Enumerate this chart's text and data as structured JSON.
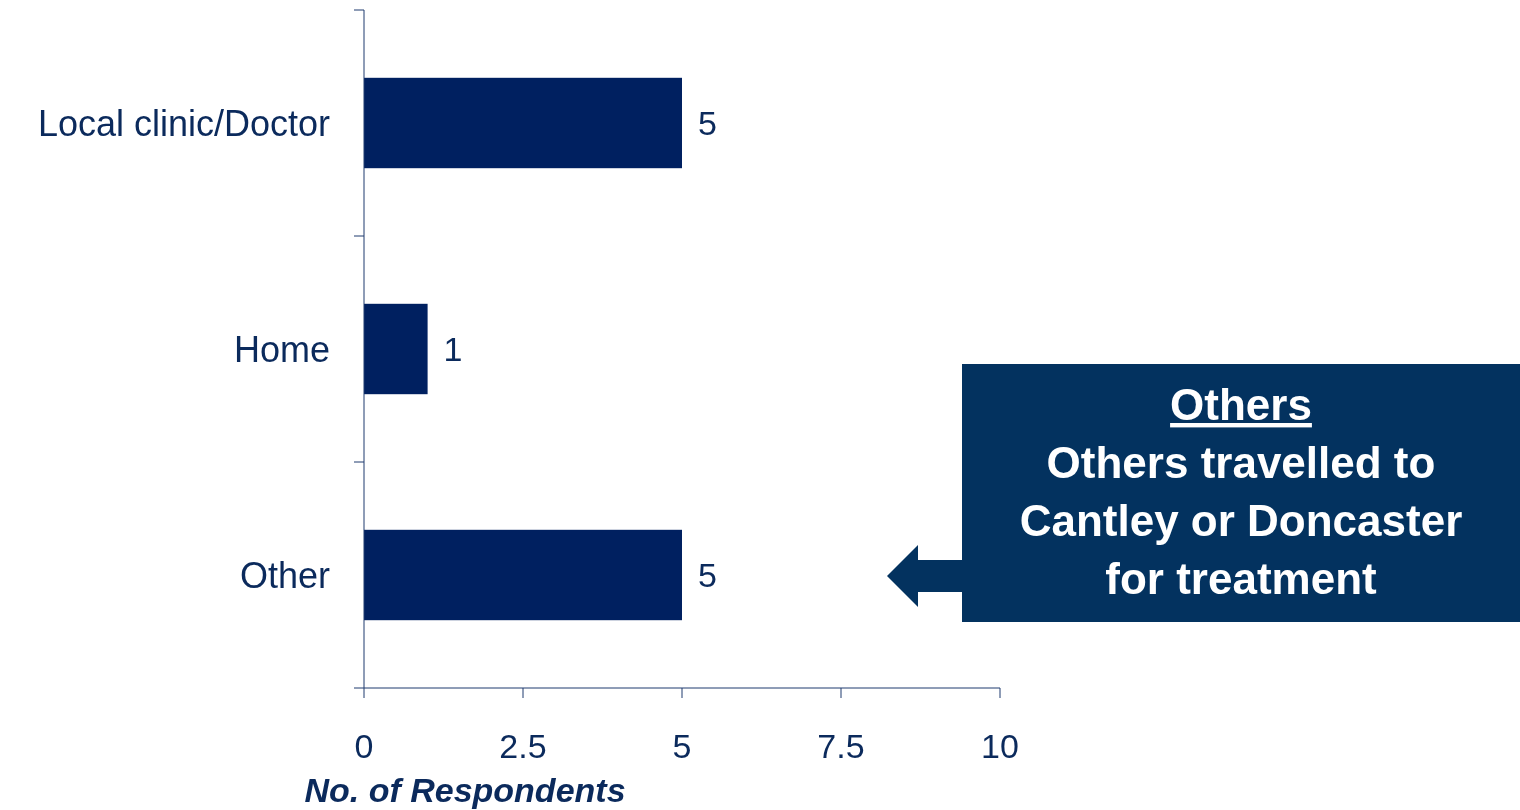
{
  "chart_data": {
    "type": "bar",
    "orientation": "horizontal",
    "categories": [
      "Local clinic/Doctor",
      "Home",
      "Other"
    ],
    "values": [
      5,
      1,
      5
    ],
    "color": "#002060",
    "xlim": [
      0,
      10
    ],
    "xticks": [
      0,
      2.5,
      5,
      7.5,
      10
    ],
    "xlabel": "No. of Respondents",
    "data_labels": true,
    "grid": false,
    "annotations": [
      "Others",
      "Others travelled to Cantley or Doncaster for treatment"
    ]
  }
}
